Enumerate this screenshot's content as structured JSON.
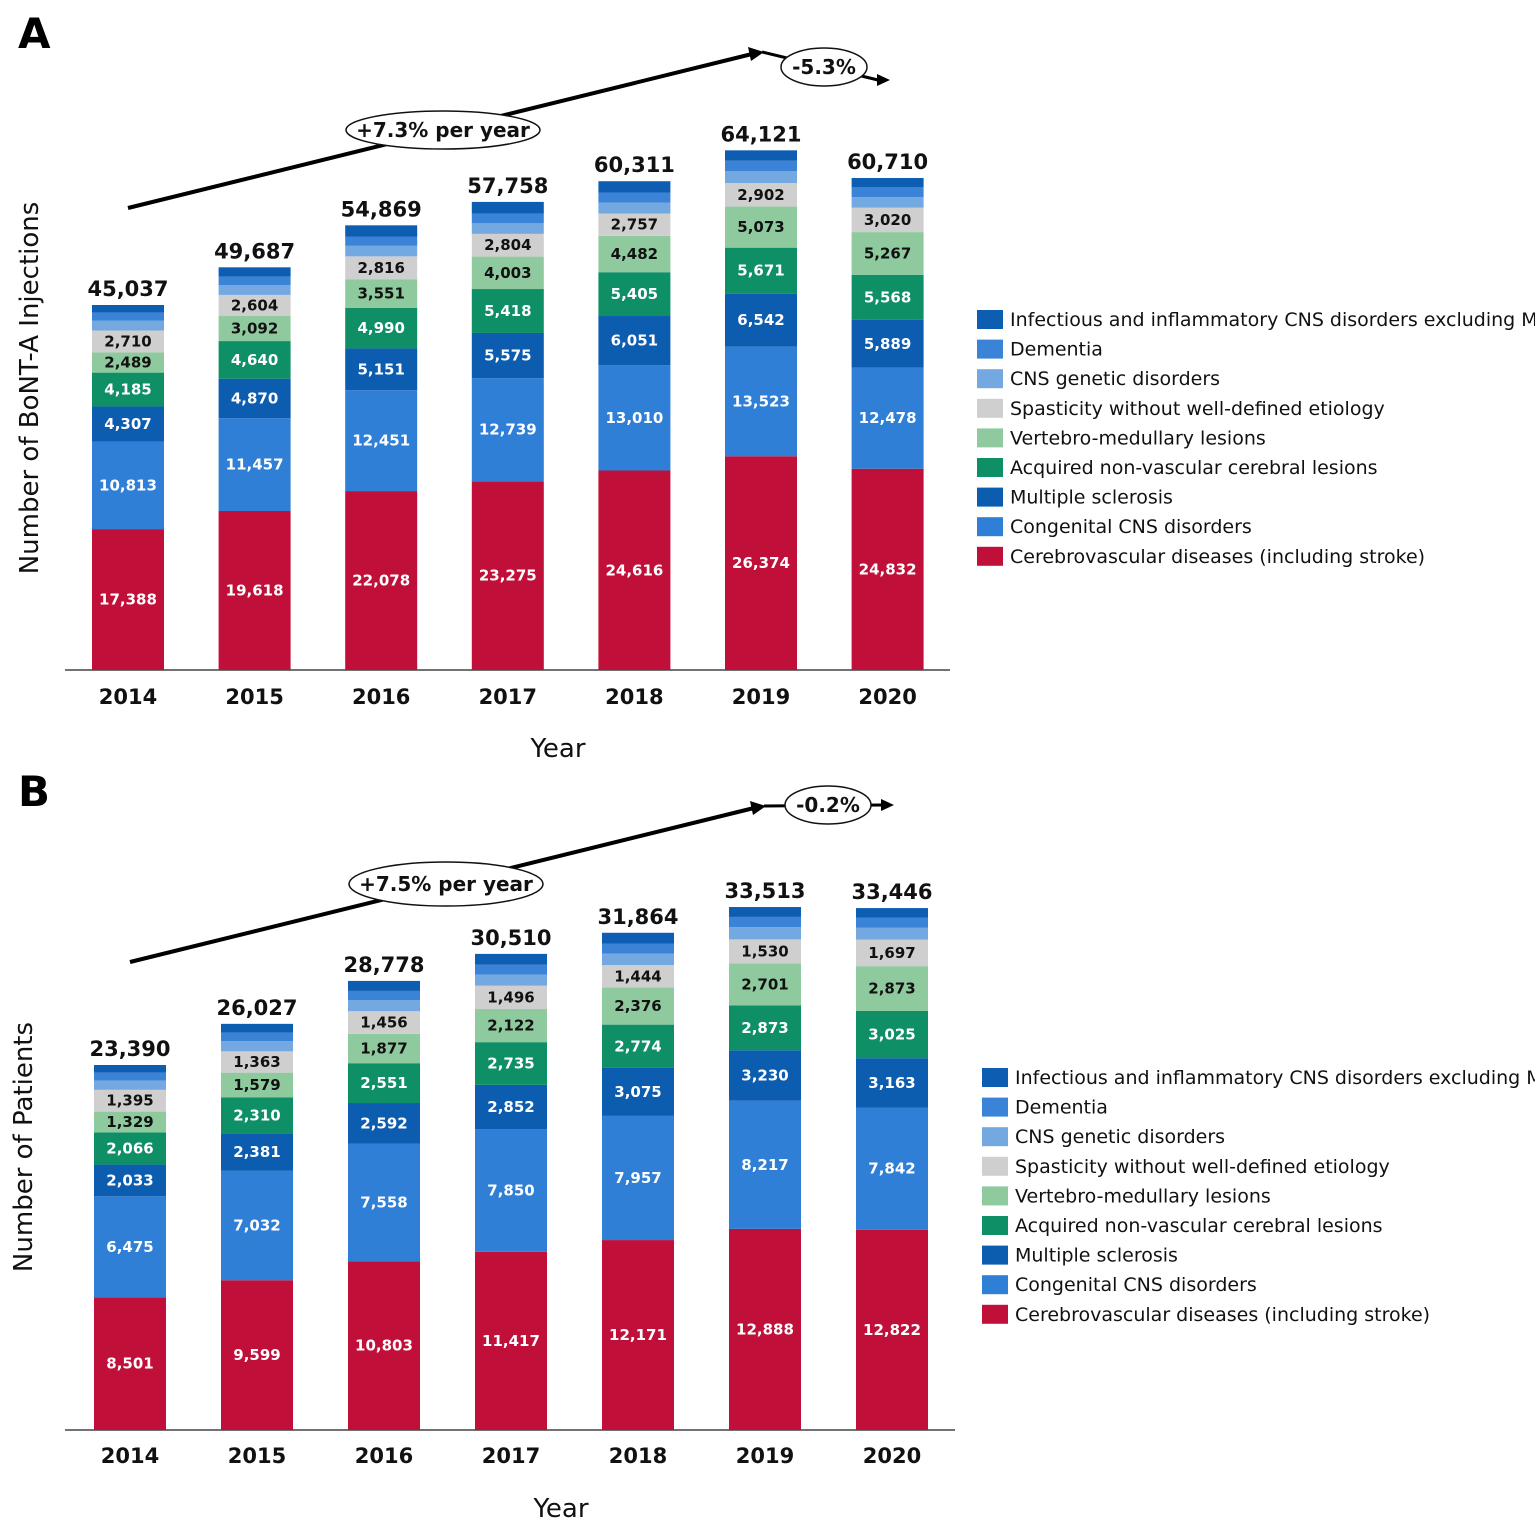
{
  "colors": {
    "Cerebrovascular diseases (including stroke)": "#c0103a",
    "Congenital CNS disorders": "#2f7fd6",
    "Multiple sclerosis": "#0c5cb0",
    "Acquired non-vascular cerebral lesions": "#0f8f66",
    "Vertebro-medullary lesions": "#8fca9e",
    "Spasticity without well-defined etiology": "#cfcfcf",
    "CNS genetic disorders": "#74a8e0",
    "Dementia": "#3a83d6",
    "Infectious and inflammatory CNS disorders excluding MS": "#0d5db2"
  },
  "chart_data": [
    {
      "panel": "A",
      "type": "bar",
      "stacked": true,
      "ylabel": "Number of BoNT-A Injections",
      "xlabel": "Year",
      "categories": [
        "2014",
        "2015",
        "2016",
        "2017",
        "2018",
        "2019",
        "2020"
      ],
      "totals": [
        "45,037",
        "49,687",
        "54,869",
        "57,758",
        "60,311",
        "64,121",
        "60,710"
      ],
      "total_values": [
        45037,
        49687,
        54869,
        57758,
        60311,
        64121,
        60710
      ],
      "series": [
        {
          "name": "Cerebrovascular diseases (including stroke)",
          "values": [
            17388,
            19618,
            22078,
            23275,
            24616,
            26374,
            24832
          ],
          "labels": [
            "17,388",
            "19,618",
            "22,078",
            "23,275",
            "24,616",
            "26,374",
            "24,832"
          ]
        },
        {
          "name": "Congenital CNS disorders",
          "values": [
            10813,
            11457,
            12451,
            12739,
            13010,
            13523,
            12478
          ],
          "labels": [
            "10,813",
            "11,457",
            "12,451",
            "12,739",
            "13,010",
            "13,523",
            "12,478"
          ]
        },
        {
          "name": "Multiple sclerosis",
          "values": [
            4307,
            4870,
            5151,
            5575,
            6051,
            6542,
            5889
          ],
          "labels": [
            "4,307",
            "4,870",
            "5,151",
            "5,575",
            "6,051",
            "6,542",
            "5,889"
          ]
        },
        {
          "name": "Acquired non-vascular cerebral lesions",
          "values": [
            4185,
            4640,
            4990,
            5418,
            5405,
            5671,
            5568
          ],
          "labels": [
            "4,185",
            "4,640",
            "4,990",
            "5,418",
            "5,405",
            "5,671",
            "5,568"
          ]
        },
        {
          "name": "Vertebro-medullary lesions",
          "values": [
            2489,
            3092,
            3551,
            4003,
            4482,
            5073,
            5267
          ],
          "labels": [
            "2,489",
            "3,092",
            "3,551",
            "4,003",
            "4,482",
            "5,073",
            "5,267"
          ]
        },
        {
          "name": "Spasticity without well-defined etiology",
          "values": [
            2710,
            2604,
            2816,
            2804,
            2757,
            2902,
            3020
          ],
          "labels": [
            "2,710",
            "2,604",
            "2,816",
            "2,804",
            "2,757",
            "2,902",
            "3,020"
          ]
        },
        {
          "name": "CNS genetic disorders",
          "values": [
            1200,
            1200,
            1300,
            1300,
            1350,
            1450,
            1300
          ],
          "labels": [
            "",
            "",
            "",
            "",
            "",
            "",
            ""
          ]
        },
        {
          "name": "Dementia",
          "values": [
            1000,
            1050,
            1150,
            1200,
            1250,
            1300,
            1200
          ],
          "labels": [
            "",
            "",
            "",
            "",
            "",
            "",
            ""
          ]
        },
        {
          "name": "Infectious and inflammatory CNS disorders excluding MS",
          "values": [
            945,
            1156,
            1382,
            1444,
            1390,
            1286,
            1156
          ],
          "labels": [
            "",
            "",
            "",
            "",
            "",
            "",
            ""
          ]
        }
      ],
      "trend_growth": "+7.3% per year",
      "trend_change": "-5.3%"
    },
    {
      "panel": "B",
      "type": "bar",
      "stacked": true,
      "ylabel": "Number of Patients",
      "xlabel": "Year",
      "categories": [
        "2014",
        "2015",
        "2016",
        "2017",
        "2018",
        "2019",
        "2020"
      ],
      "totals": [
        "23,390",
        "26,027",
        "28,778",
        "30,510",
        "31,864",
        "33,513",
        "33,446"
      ],
      "total_values": [
        23390,
        26027,
        28778,
        30510,
        31864,
        33513,
        33446
      ],
      "series": [
        {
          "name": "Cerebrovascular diseases (including stroke)",
          "values": [
            8501,
            9599,
            10803,
            11417,
            12171,
            12888,
            12822
          ],
          "labels": [
            "8,501",
            "9,599",
            "10,803",
            "11,417",
            "12,171",
            "12,888",
            "12,822"
          ]
        },
        {
          "name": "Congenital CNS disorders",
          "values": [
            6475,
            7032,
            7558,
            7850,
            7957,
            8217,
            7842
          ],
          "labels": [
            "6,475",
            "7,032",
            "7,558",
            "7,850",
            "7,957",
            "8,217",
            "7,842"
          ]
        },
        {
          "name": "Multiple sclerosis",
          "values": [
            2033,
            2381,
            2592,
            2852,
            3075,
            3230,
            3163
          ],
          "labels": [
            "2,033",
            "2,381",
            "2,592",
            "2,852",
            "3,075",
            "3,230",
            "3,163"
          ]
        },
        {
          "name": "Acquired non-vascular cerebral lesions",
          "values": [
            2066,
            2310,
            2551,
            2735,
            2774,
            2873,
            3025
          ],
          "labels": [
            "2,066",
            "2,310",
            "2,551",
            "2,735",
            "2,774",
            "2,873",
            "3,025"
          ]
        },
        {
          "name": "Vertebro-medullary lesions",
          "values": [
            1329,
            1579,
            1877,
            2122,
            2376,
            2701,
            2873
          ],
          "labels": [
            "1,329",
            "1,579",
            "1,877",
            "2,122",
            "2,376",
            "2,701",
            "2,873"
          ]
        },
        {
          "name": "Spasticity without well-defined etiology",
          "values": [
            1395,
            1363,
            1456,
            1496,
            1444,
            1530,
            1697
          ],
          "labels": [
            "1,395",
            "1,363",
            "1,456",
            "1,496",
            "1,444",
            "1,530",
            "1,697"
          ]
        },
        {
          "name": "CNS genetic disorders",
          "values": [
            600,
            650,
            700,
            720,
            740,
            780,
            760
          ],
          "labels": [
            "",
            "",
            "",
            "",
            "",
            "",
            ""
          ]
        },
        {
          "name": "Dementia",
          "values": [
            500,
            550,
            600,
            620,
            640,
            660,
            640
          ],
          "labels": [
            "",
            "",
            "",
            "",
            "",
            "",
            ""
          ]
        },
        {
          "name": "Infectious and inflammatory CNS disorders excluding MS",
          "values": [
            491,
            563,
            641,
            698,
            687,
            634,
            624
          ],
          "labels": [
            "",
            "",
            "",
            "",
            "",
            "",
            ""
          ]
        }
      ],
      "trend_growth": "+7.5% per year",
      "trend_change": "-0.2%"
    }
  ],
  "legend_order": [
    "Infectious and inflammatory CNS disorders excluding MS",
    "Dementia",
    "CNS genetic disorders",
    "Spasticity without well-defined etiology",
    "Vertebro-medullary lesions",
    "Acquired non-vascular cerebral lesions",
    "Multiple sclerosis",
    "Congenital CNS disorders",
    "Cerebrovascular diseases (including stroke)"
  ]
}
